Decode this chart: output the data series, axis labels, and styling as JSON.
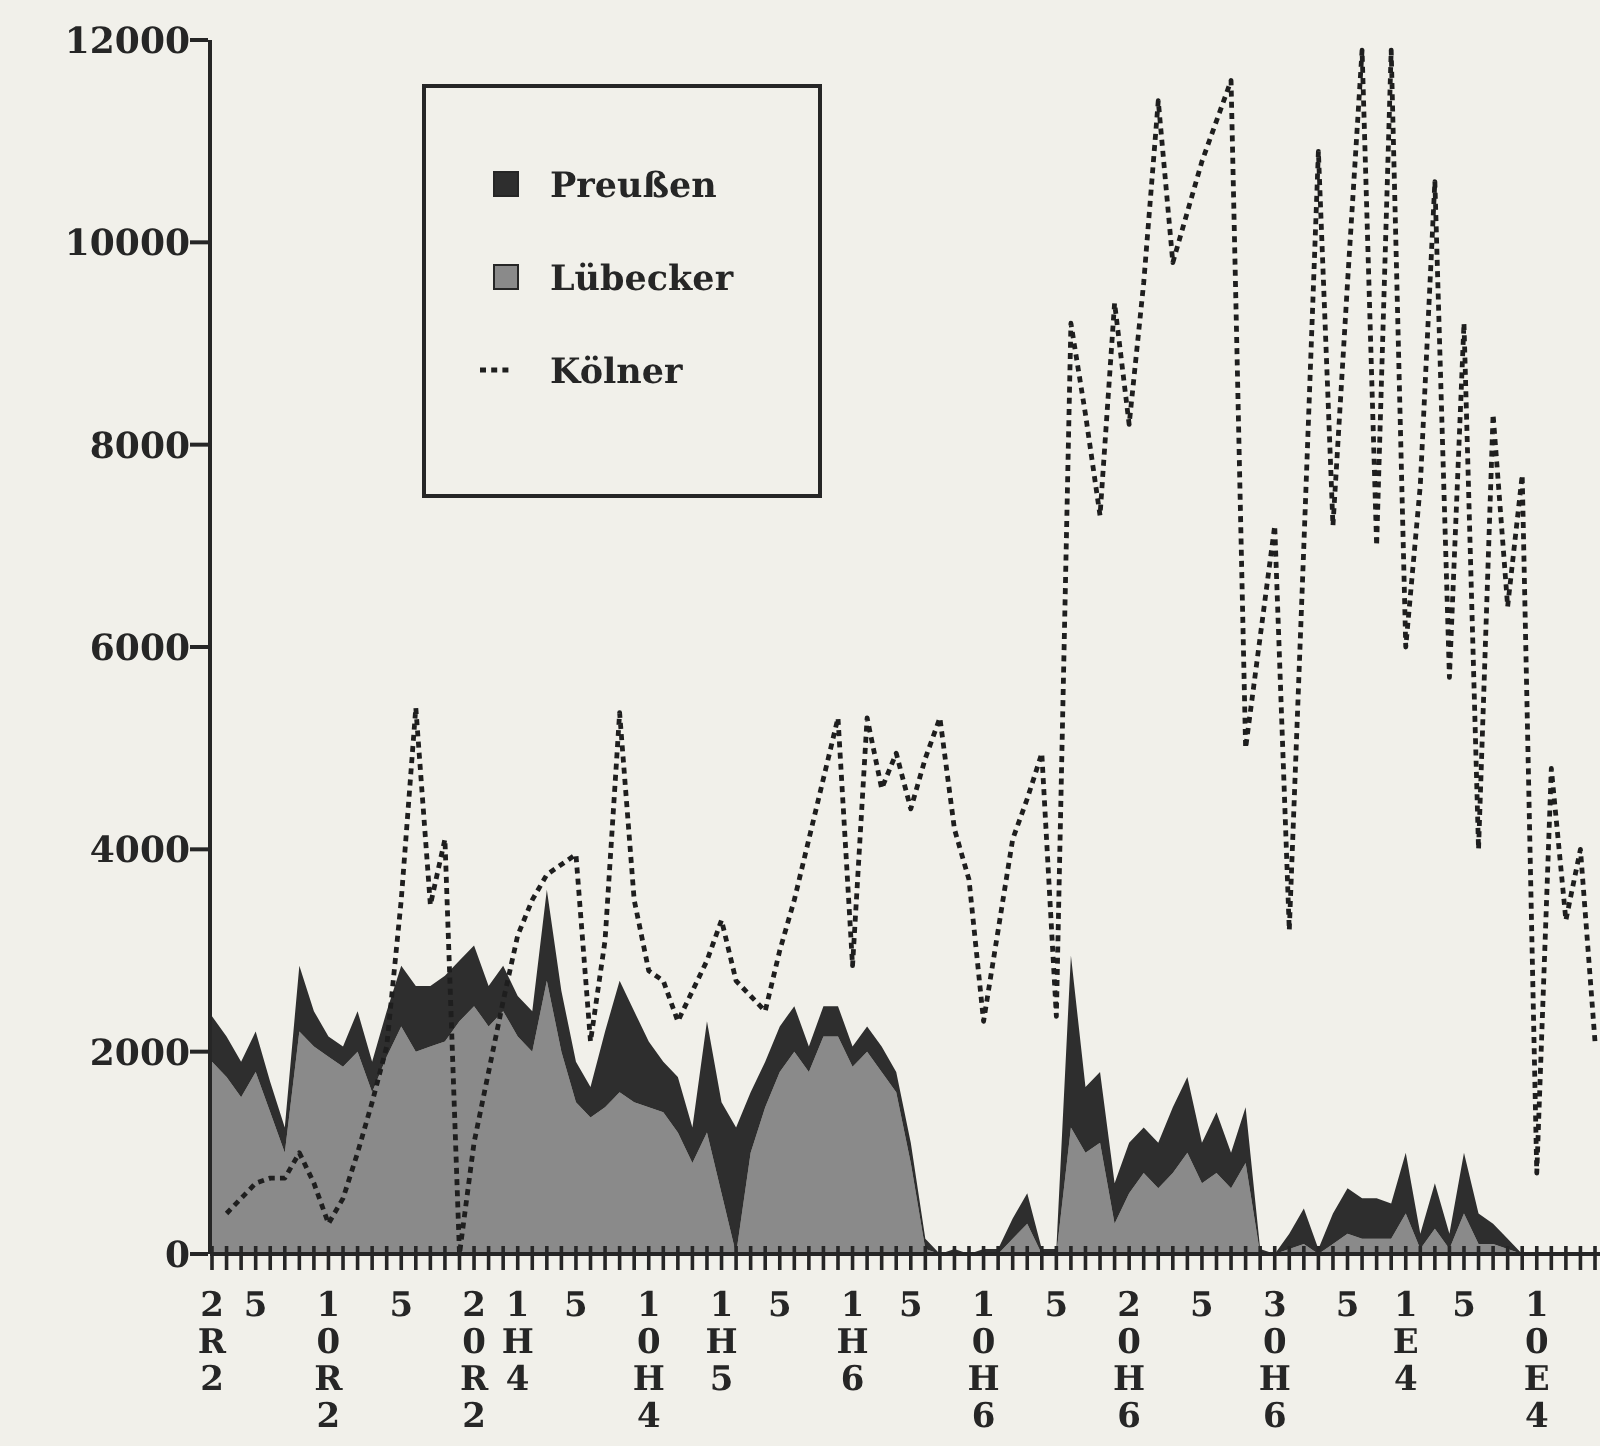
{
  "chart_data": {
    "type": "area",
    "stacked": true,
    "legend": "top left",
    "categories": [
      "2R2",
      null,
      null,
      "5",
      null,
      null,
      null,
      null,
      "10R2",
      null,
      null,
      null,
      null,
      "5",
      null,
      null,
      null,
      null,
      "20R2",
      null,
      null,
      "1H4",
      null,
      null,
      null,
      "5",
      null,
      null,
      null,
      null,
      "10H4",
      null,
      null,
      null,
      null,
      "1H5",
      null,
      null,
      null,
      "5",
      null,
      null,
      null,
      null,
      "1H6",
      null,
      null,
      null,
      "5",
      null,
      null,
      null,
      null,
      "10H6",
      null,
      null,
      null,
      null,
      "5",
      null,
      null,
      null,
      null,
      "20H6",
      null,
      null,
      null,
      null,
      "5",
      null,
      null,
      null,
      null,
      "30H6",
      null,
      null,
      null,
      null,
      "5",
      null,
      null,
      null,
      "1E4",
      null,
      null,
      null,
      "5",
      null,
      null,
      null,
      null,
      "10E4",
      null,
      null,
      null,
      null
    ],
    "ylim": [
      0,
      12000
    ],
    "yticks": [
      0,
      2000,
      4000,
      6000,
      8000,
      10000,
      12000
    ],
    "series": [
      {
        "name": "Lübecker",
        "color": "#8a8a8a",
        "values": [
          1900,
          1750,
          1550,
          1800,
          1400,
          1000,
          2200,
          2050,
          1950,
          1850,
          2000,
          1600,
          1950,
          2250,
          2000,
          2050,
          2100,
          2300,
          2450,
          2250,
          2400,
          2150,
          2000,
          2700,
          2000,
          1500,
          1350,
          1450,
          1600,
          1500,
          1450,
          1400,
          1200,
          900,
          1200,
          600,
          0,
          1000,
          1450,
          1800,
          2000,
          1800,
          2150,
          2150,
          1850,
          2000,
          1800,
          1600,
          900,
          50,
          0,
          0,
          0,
          0,
          0,
          150,
          300,
          0,
          0,
          1250,
          1000,
          1100,
          300,
          600,
          800,
          650,
          800,
          1000,
          700,
          800,
          650,
          900,
          0,
          0,
          50,
          100,
          0,
          100,
          200,
          150,
          150,
          150,
          400,
          50,
          250,
          50,
          400,
          100,
          100,
          50,
          0,
          null,
          null,
          null,
          null,
          null
        ]
      },
      {
        "name": "Preußen",
        "color": "#2e2e2e",
        "values": [
          450,
          400,
          350,
          400,
          300,
          250,
          650,
          350,
          200,
          200,
          400,
          300,
          450,
          600,
          650,
          600,
          650,
          600,
          600,
          400,
          450,
          400,
          400,
          900,
          600,
          400,
          300,
          750,
          1100,
          900,
          650,
          500,
          550,
          350,
          1100,
          900,
          1250,
          600,
          450,
          450,
          450,
          250,
          300,
          300,
          200,
          250,
          250,
          200,
          200,
          100,
          0,
          50,
          0,
          50,
          50,
          200,
          300,
          50,
          50,
          1700,
          650,
          700,
          400,
          500,
          450,
          450,
          650,
          750,
          400,
          600,
          350,
          550,
          50,
          0,
          150,
          350,
          50,
          300,
          450,
          400,
          400,
          350,
          600,
          150,
          450,
          150,
          600,
          300,
          200,
          100,
          0,
          null,
          null,
          null,
          null,
          null
        ]
      },
      {
        "name": "Kölner",
        "type": "line",
        "line_style": "dotted",
        "color": "#1e1e1e",
        "values": [
          null,
          400,
          550,
          700,
          750,
          750,
          1000,
          700,
          300,
          550,
          1000,
          1500,
          2050,
          3500,
          5400,
          3450,
          4100,
          0,
          1100,
          1800,
          2500,
          3150,
          3500,
          3750,
          3850,
          3950,
          2100,
          3100,
          5350,
          3500,
          2800,
          2700,
          2300,
          2600,
          2900,
          3300,
          2700,
          2550,
          2400,
          3000,
          3500,
          4100,
          4700,
          5300,
          2850,
          5300,
          4600,
          4950,
          4400,
          4900,
          5300,
          4200,
          3700,
          2300,
          3200,
          4100,
          4500,
          4950,
          2350,
          9200,
          8300,
          7300,
          9400,
          8200,
          9600,
          11400,
          9800,
          10300,
          10800,
          11200,
          11600,
          5000,
          6100,
          7200,
          3200,
          7000,
          10900,
          7200,
          9600,
          11900,
          7000,
          11900,
          6000,
          7600,
          10600,
          5700,
          9200,
          4000,
          8300,
          6400,
          7700,
          800,
          4800,
          3300,
          4000,
          2100
        ]
      }
    ]
  }
}
